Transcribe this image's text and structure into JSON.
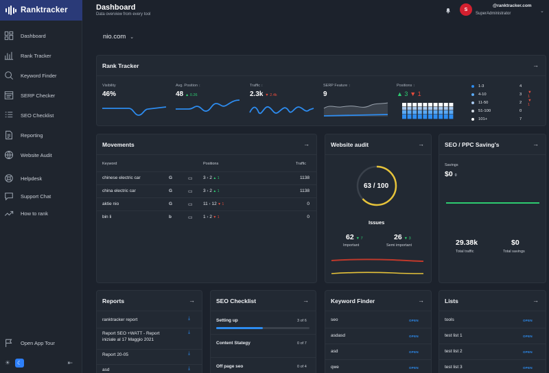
{
  "brand": {
    "name": "Ranktracker"
  },
  "sidebar": {
    "items": [
      {
        "label": "Dashboard",
        "icon": "dashboard-icon"
      },
      {
        "label": "Rank Tracker",
        "icon": "chart-bars-icon"
      },
      {
        "label": "Keyword Finder",
        "icon": "search-icon"
      },
      {
        "label": "SERP Checker",
        "icon": "serp-icon"
      },
      {
        "label": "SEO Checklist",
        "icon": "checklist-icon"
      },
      {
        "label": "Reporting",
        "icon": "document-icon"
      },
      {
        "label": "Website Audit",
        "icon": "globe-icon"
      },
      {
        "label": "Helpdesk",
        "icon": "lifebuoy-icon"
      },
      {
        "label": "Support Chat",
        "icon": "chat-icon"
      },
      {
        "label": "How to rank",
        "icon": "trend-icon"
      }
    ],
    "bottom": {
      "open_app_tour": "Open App Tour"
    }
  },
  "header": {
    "title": "Dashboard",
    "subtitle": "Data overview from every tool",
    "user_email": "@ranktracker.com",
    "user_role": "SuperAdministrator",
    "avatar_letter": "S"
  },
  "domain": "nio.com",
  "rank_tracker": {
    "title": "Rank Tracker",
    "metrics": [
      {
        "label": "Visibility",
        "value": "46%",
        "delta": "",
        "dir": ""
      },
      {
        "label": "Avg. Position",
        "value": "48",
        "delta": "0.26",
        "dir": "up"
      },
      {
        "label": "Traffic",
        "value": "2.3k",
        "delta": "2.4k",
        "dir": "down"
      },
      {
        "label": "SERP Feature",
        "value": "9",
        "delta": "",
        "dir": ""
      },
      {
        "label": "Positions",
        "value_up": "3",
        "value_down": "1"
      }
    ],
    "legend": [
      {
        "label": "1-3",
        "value": "4",
        "sub": "",
        "color": "#2d8cf0"
      },
      {
        "label": "4-10",
        "value": "3",
        "sub": "1",
        "color": "#5aa9f5"
      },
      {
        "label": "11-50",
        "value": "2",
        "sub": "1",
        "color": "#a9c9ee"
      },
      {
        "label": "51-100",
        "value": "0",
        "sub": "",
        "color": "#d6dde6"
      },
      {
        "label": "101+",
        "value": "7",
        "sub": "",
        "color": "#ffffff"
      }
    ]
  },
  "movements": {
    "title": "Movements",
    "headers": {
      "keyword": "Keyword",
      "positions": "Positions",
      "traffic": "Traffic"
    },
    "rows": [
      {
        "keyword": "chinese electric car",
        "from": "3",
        "to": "2",
        "delta": "1",
        "dir": "up",
        "traffic": "1138",
        "engine": "G"
      },
      {
        "keyword": "china electric car",
        "from": "3",
        "to": "2",
        "delta": "1",
        "dir": "up",
        "traffic": "1138",
        "engine": "G"
      },
      {
        "keyword": "aktie nio",
        "from": "11",
        "to": "12",
        "delta": "1",
        "dir": "down",
        "traffic": "0",
        "engine": "G"
      },
      {
        "keyword": "bin li",
        "from": "1",
        "to": "2",
        "delta": "1",
        "dir": "down",
        "traffic": "0",
        "engine": "b"
      }
    ]
  },
  "website_audit": {
    "title": "Website audit",
    "score": "63 / 100",
    "score_fraction": 0.63,
    "issues_title": "Issues",
    "important": {
      "value": "62",
      "delta": "7",
      "label": "Important"
    },
    "semi_important": {
      "value": "26",
      "delta": "3",
      "label": "Semi important"
    }
  },
  "seo_savings": {
    "title": "SEO / PPC Saving's",
    "savings_label": "Savings",
    "savings_value": "$0",
    "savings_delta": "0",
    "total_traffic": {
      "value": "29.38k",
      "label": "Total traffic"
    },
    "total_savings": {
      "value": "$0",
      "label": "Total savings"
    }
  },
  "reports": {
    "title": "Reports",
    "items": [
      {
        "line1": "ranktracker report",
        "line2": ""
      },
      {
        "line1": "Report SEO +WATT - Report",
        "line2": "iniziale al 17 Maggio 2021"
      },
      {
        "line1": "Report 20-05",
        "line2": ""
      },
      {
        "line1": "asd",
        "line2": ""
      }
    ]
  },
  "seo_checklist": {
    "title": "SEO Checklist",
    "items": [
      {
        "label": "Setting up",
        "count": "3 of 6",
        "progress": 0.5
      },
      {
        "label": "Content Stategy",
        "count": "0 of 7",
        "progress": 0
      },
      {
        "label": "Off page seo",
        "count": "0 of 4",
        "progress": 0
      }
    ]
  },
  "keyword_finder": {
    "title": "Keyword Finder",
    "open_label": "OPEN",
    "items": [
      "seo",
      "asdasd",
      "asd",
      "qwe"
    ]
  },
  "lists": {
    "title": "Lists",
    "open_label": "OPEN",
    "items": [
      "tools",
      "test list 1",
      "test list 2",
      "test list 3"
    ]
  },
  "colors": {
    "accent": "#2d8cf0",
    "brand_bar": "#2a3a78",
    "up": "#2ecc71",
    "down": "#e74c3c",
    "gauge": "#e6c33a"
  }
}
